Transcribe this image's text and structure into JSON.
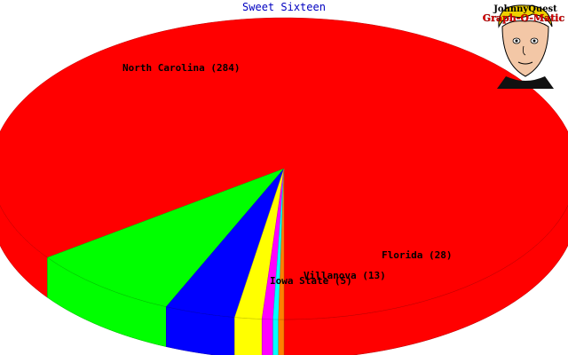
{
  "chart_data": {
    "type": "pie",
    "title": "Sweet Sixteen",
    "slices": [
      {
        "label": "North Carolina",
        "value": 284,
        "color": "#ff0000"
      },
      {
        "label": "Florida",
        "value": 28,
        "color": "#00ff00"
      },
      {
        "label": "Villanova",
        "value": 13,
        "color": "#0000ff"
      },
      {
        "label": "Iowa State",
        "value": 5,
        "color": "#ffff00"
      },
      {
        "label": "",
        "value": 2,
        "color": "#ff00ff"
      },
      {
        "label": "",
        "value": 1,
        "color": "#00ffff"
      },
      {
        "label": "",
        "value": 1,
        "color": "#ff8000"
      }
    ]
  },
  "logo": {
    "line1": "JohnnyQuest",
    "line2": "Graph-O-Matic"
  }
}
